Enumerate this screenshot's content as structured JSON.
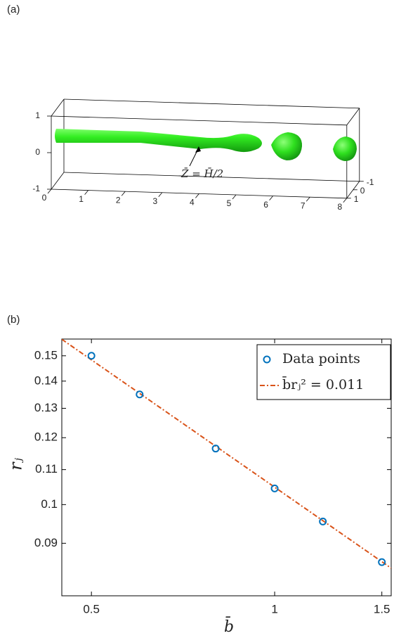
{
  "chart_data": [
    {
      "type": "surface3d",
      "label": "(a)",
      "annotation": "Z̄ = H̄/2",
      "xticks": [
        0,
        1,
        2,
        3,
        4,
        5,
        6,
        7,
        8
      ],
      "yticks": [
        -1,
        0,
        1
      ],
      "zticks": [
        -1,
        0,
        1
      ]
    },
    {
      "type": "scatter",
      "label": "(b)",
      "x_label": "b̄",
      "y_label": "rⱼ",
      "log_x": true,
      "log_y": true,
      "legend": "upper right",
      "xlim": [
        0.447,
        1.554
      ],
      "ylim": [
        0.078,
        0.157
      ],
      "xticks": [
        0.5,
        1,
        1.5
      ],
      "yticks": [
        0.09,
        0.1,
        0.11,
        0.12,
        0.13,
        0.14,
        0.15
      ],
      "series": [
        {
          "name": "Data points",
          "type": "scatter",
          "color": "#0072bd",
          "x": [
            0.5,
            0.6,
            0.8,
            1.0,
            1.2,
            1.5
          ],
          "values": [
            0.15,
            0.135,
            0.1165,
            0.1045,
            0.0955,
            0.0855
          ]
        },
        {
          "name": "b̄rⱼ² = 0.011",
          "type": "line",
          "color": "#d95319",
          "x": [
            0.447,
            1.554
          ],
          "values": [
            0.1569,
            0.0841
          ]
        }
      ]
    }
  ]
}
